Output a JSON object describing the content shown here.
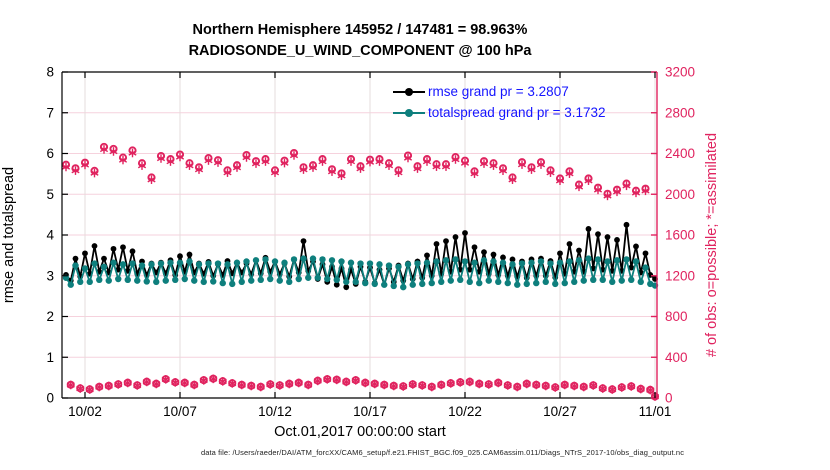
{
  "header": {
    "title_line1": "Northern Hemisphere 145952 / 147481 = 98.963%",
    "title_line2": "RADIOSONDE_U_WIND_COMPONENT @ 100 hPa"
  },
  "legend": {
    "text_color": "#1515ff",
    "items": [
      {
        "label": "rmse grand pr = 3.2807",
        "series": "rmse"
      },
      {
        "label": "totalspread grand pr = 3.1732",
        "series": "totalspread"
      }
    ]
  },
  "footer": {
    "text": "data file: /Users/raeder/DAI/ATM_forcXX/CAM6_setup/f.e21.FHIST_BGC.f09_025.CAM6assim.011/Diags_NTrS_2017-10/obs_diag_output.nc"
  },
  "colors": {
    "rmse": "#000000",
    "totalspread": "#0e7f7d",
    "obs": "#e0235f",
    "grid_h": "#f6d2dd",
    "grid_v": "#e6dcdc",
    "axis_black": "#000000"
  },
  "chart_data": {
    "type": "line",
    "title": "Northern Hemisphere 145952 / 147481 = 98.963% | RADIOSONDE_U_WIND_COMPONENT @ 100 hPa",
    "xlabel": "Oct.01,2017 00:00:00 start",
    "ylabel_left": "rmse and totalspread",
    "ylabel_right": "# of obs: o=possible; *=assimilated",
    "grid": true,
    "legend_position": "top-right-inside",
    "ylim_left": [
      0,
      8
    ],
    "ylim_right": [
      0,
      3200
    ],
    "yticks_left": [
      "0",
      "1",
      "2",
      "3",
      "4",
      "5",
      "6",
      "7",
      "8"
    ],
    "yticks_right": [
      "0",
      "400",
      "800",
      "1200",
      "1600",
      "2000",
      "2400",
      "2800",
      "3200"
    ],
    "xtick_labels": [
      "10/02",
      "10/07",
      "10/12",
      "10/17",
      "10/22",
      "10/27",
      "11/01"
    ],
    "xtick_days": [
      1,
      6,
      11,
      16,
      21,
      26,
      31
    ],
    "x_start_day": 0,
    "x_step_days": 0.25,
    "series": [
      {
        "name": "rmse",
        "axis": "left",
        "style": "line+marker",
        "marker": "filled-circle",
        "grand_mean": 3.2807,
        "values": [
          3.02,
          2.88,
          3.42,
          2.98,
          3.55,
          3.05,
          3.73,
          3.1,
          3.42,
          3.08,
          3.66,
          3.15,
          3.7,
          3.12,
          3.6,
          3.05,
          3.35,
          3.02,
          3.3,
          3.08,
          3.32,
          3.06,
          3.38,
          3.02,
          3.48,
          3.1,
          3.52,
          3.08,
          3.3,
          3.05,
          3.34,
          3.0,
          3.28,
          3.02,
          3.36,
          3.06,
          3.32,
          3.08,
          3.3,
          3.04,
          3.38,
          3.06,
          3.44,
          3.1,
          3.35,
          3.04,
          3.3,
          2.98,
          3.4,
          3.08,
          3.85,
          3.12,
          3.35,
          2.92,
          3.28,
          2.85,
          3.22,
          2.78,
          3.18,
          2.72,
          3.15,
          2.8,
          3.22,
          2.85,
          3.2,
          2.82,
          3.15,
          2.78,
          3.18,
          2.85,
          3.25,
          2.88,
          3.3,
          2.92,
          3.35,
          2.95,
          3.5,
          3.0,
          3.78,
          3.05,
          3.85,
          3.1,
          3.95,
          3.15,
          4.05,
          3.15,
          3.7,
          3.1,
          3.58,
          3.05,
          3.52,
          3.02,
          3.45,
          3.0,
          3.4,
          2.98,
          3.35,
          2.95,
          3.4,
          3.0,
          3.42,
          3.0,
          3.36,
          2.96,
          3.55,
          3.05,
          3.78,
          3.1,
          3.62,
          3.1,
          4.15,
          3.18,
          4.02,
          3.15,
          3.95,
          3.12,
          3.88,
          3.12,
          4.25,
          3.2,
          3.72,
          3.08,
          3.55,
          3.02,
          2.92
        ]
      },
      {
        "name": "totalspread",
        "axis": "left",
        "style": "line+marker",
        "marker": "filled-circle",
        "grand_mean": 3.1732,
        "values": [
          2.95,
          2.78,
          3.25,
          2.85,
          3.18,
          2.85,
          3.3,
          2.9,
          3.22,
          2.88,
          3.32,
          2.92,
          3.28,
          2.9,
          3.3,
          2.88,
          3.25,
          2.86,
          3.28,
          2.85,
          3.3,
          2.88,
          3.32,
          2.9,
          3.32,
          2.92,
          3.35,
          2.88,
          3.28,
          2.85,
          3.3,
          2.86,
          3.3,
          2.82,
          3.28,
          2.8,
          3.32,
          2.85,
          3.35,
          2.88,
          3.38,
          2.9,
          3.4,
          2.92,
          3.35,
          2.88,
          3.32,
          2.85,
          3.4,
          2.92,
          3.42,
          2.95,
          3.42,
          2.95,
          3.4,
          2.92,
          3.38,
          2.9,
          3.35,
          2.85,
          3.32,
          2.85,
          3.3,
          2.82,
          3.3,
          2.8,
          3.28,
          2.78,
          3.25,
          2.75,
          3.22,
          2.72,
          3.28,
          2.78,
          3.3,
          2.8,
          3.32,
          2.82,
          3.35,
          2.85,
          3.38,
          2.88,
          3.4,
          2.9,
          3.35,
          2.85,
          3.32,
          2.82,
          3.38,
          2.88,
          3.35,
          2.85,
          3.32,
          2.82,
          3.28,
          2.78,
          3.3,
          2.8,
          3.32,
          2.82,
          3.35,
          2.85,
          3.3,
          2.8,
          3.32,
          2.82,
          3.35,
          2.85,
          3.38,
          2.88,
          3.42,
          2.9,
          3.4,
          2.9,
          3.35,
          2.85,
          3.38,
          2.88,
          3.4,
          2.9,
          3.35,
          2.85,
          3.2,
          2.8,
          2.76
        ]
      },
      {
        "name": "obs_possible",
        "axis": "right",
        "style": "marker",
        "marker": "open-circle",
        "values": [
          2290,
          130,
          2255,
          95,
          2310,
          85,
          2230,
          110,
          2465,
          120,
          2445,
          135,
          2360,
          150,
          2430,
          125,
          2305,
          160,
          2165,
          140,
          2375,
          185,
          2345,
          155,
          2390,
          150,
          2305,
          130,
          2265,
          175,
          2355,
          190,
          2335,
          165,
          2235,
          145,
          2285,
          130,
          2385,
          120,
          2325,
          110,
          2345,
          135,
          2235,
          125,
          2330,
          140,
          2405,
          150,
          2265,
          130,
          2285,
          170,
          2345,
          185,
          2245,
          180,
          2205,
          160,
          2345,
          175,
          2275,
          150,
          2340,
          140,
          2345,
          130,
          2305,
          120,
          2235,
          115,
          2380,
          135,
          2275,
          125,
          2345,
          110,
          2295,
          130,
          2295,
          145,
          2365,
          155,
          2330,
          160,
          2225,
          140,
          2325,
          135,
          2305,
          150,
          2255,
          125,
          2165,
          110,
          2315,
          140,
          2265,
          130,
          2315,
          120,
          2235,
          105,
          2155,
          130,
          2225,
          120,
          2095,
          110,
          2155,
          125,
          2065,
          95,
          2005,
          85,
          2045,
          105,
          2105,
          115,
          2035,
          90,
          2055,
          80,
          15
        ]
      },
      {
        "name": "obs_assimilated",
        "axis": "right",
        "style": "marker",
        "marker": "asterisk",
        "values": [
          2268,
          128,
          2232,
          93,
          2288,
          83,
          2208,
          108,
          2440,
          118,
          2420,
          133,
          2336,
          148,
          2405,
          123,
          2281,
          158,
          2143,
          138,
          2351,
          183,
          2321,
          153,
          2366,
          148,
          2281,
          128,
          2242,
          173,
          2331,
          188,
          2311,
          163,
          2212,
          143,
          2262,
          128,
          2361,
          118,
          2301,
          108,
          2321,
          133,
          2212,
          123,
          2306,
          138,
          2381,
          148,
          2242,
          128,
          2262,
          168,
          2321,
          183,
          2222,
          178,
          2182,
          158,
          2321,
          173,
          2252,
          148,
          2316,
          138,
          2321,
          128,
          2281,
          118,
          2212,
          113,
          2356,
          133,
          2252,
          123,
          2321,
          108,
          2271,
          128,
          2271,
          143,
          2341,
          153,
          2306,
          158,
          2202,
          138,
          2301,
          133,
          2281,
          148,
          2231,
          123,
          2143,
          108,
          2291,
          138,
          2242,
          128,
          2291,
          118,
          2212,
          103,
          2133,
          128,
          2202,
          118,
          2073,
          108,
          2133,
          123,
          2043,
          93,
          1984,
          83,
          2024,
          103,
          2083,
          113,
          2014,
          88,
          2034,
          78,
          14
        ]
      }
    ]
  },
  "axes": {
    "left": {
      "label": "rmse and totalspread"
    },
    "right": {
      "label": "# of obs: o=possible; *=assimilated"
    },
    "x": {
      "label": "Oct.01,2017 00:00:00 start"
    }
  }
}
